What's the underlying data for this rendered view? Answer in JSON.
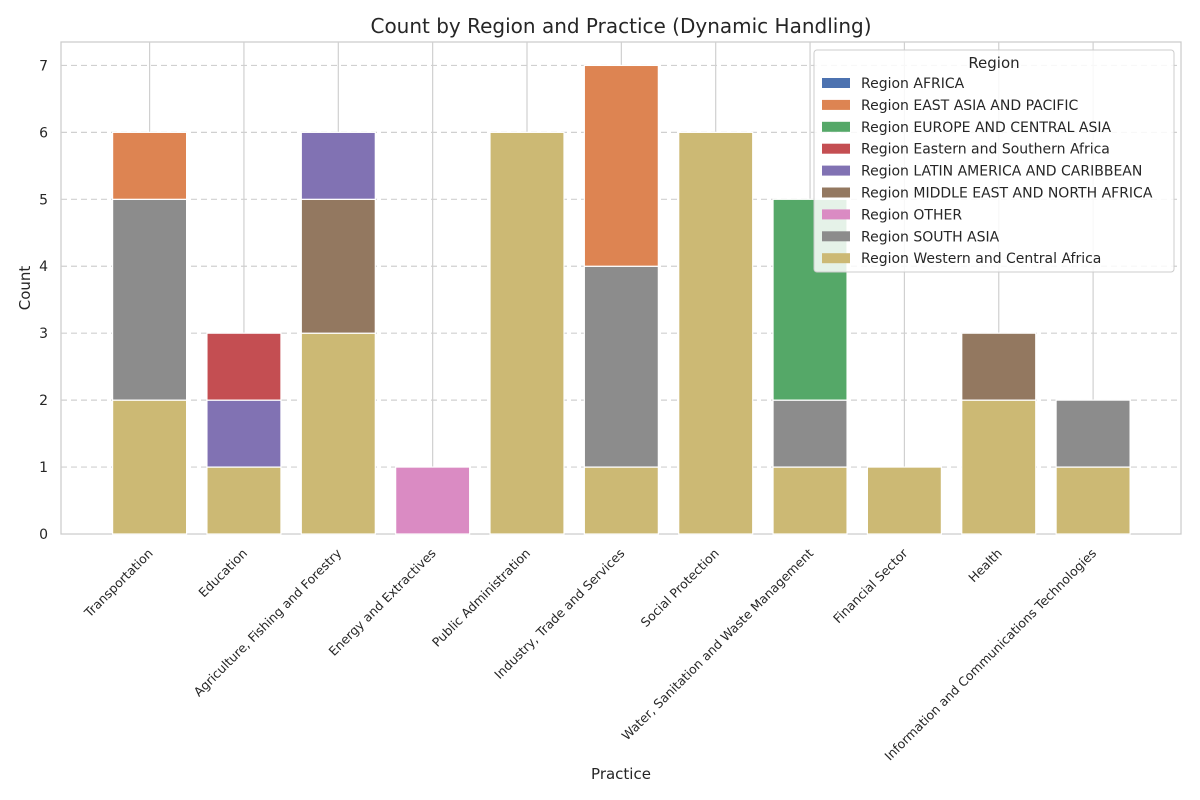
{
  "chart_data": {
    "type": "bar",
    "stacked": true,
    "title": "Count by Region and Practice (Dynamic Handling)",
    "xlabel": "Practice",
    "ylabel": "Count",
    "ylim": [
      0,
      7.35
    ],
    "yticks": [
      0,
      1,
      2,
      3,
      4,
      5,
      6,
      7
    ],
    "grid": true,
    "legend_title": "Region",
    "legend_position": "top-right",
    "categories": [
      "Transportation",
      "Education",
      "Agriculture, Fishing and Forestry",
      "Energy and Extractives",
      "Public Administration",
      "Industry, Trade and Services",
      "Social Protection",
      "Water, Sanitation and Waste Management",
      "Financial Sector",
      "Health",
      "Information and Communications Technologies"
    ],
    "series": [
      {
        "name": "Region AFRICA",
        "color": "#4c72b0",
        "values": [
          0,
          0,
          0,
          0,
          0,
          0,
          0,
          0,
          0,
          0,
          0
        ]
      },
      {
        "name": "Region EAST ASIA AND PACIFIC",
        "color": "#dd8452",
        "values": [
          1,
          0,
          0,
          0,
          0,
          3,
          0,
          0,
          0,
          0,
          0
        ]
      },
      {
        "name": "Region EUROPE AND CENTRAL ASIA",
        "color": "#55a868",
        "values": [
          0,
          0,
          0,
          0,
          0,
          0,
          0,
          3,
          0,
          0,
          0
        ]
      },
      {
        "name": "Region Eastern and Southern Africa",
        "color": "#c44e52",
        "values": [
          0,
          1,
          0,
          0,
          0,
          0,
          0,
          0,
          0,
          0,
          0
        ]
      },
      {
        "name": "Region LATIN AMERICA AND CARIBBEAN",
        "color": "#8172b3",
        "values": [
          0,
          1,
          1,
          0,
          0,
          0,
          0,
          0,
          0,
          0,
          0
        ]
      },
      {
        "name": "Region MIDDLE EAST AND NORTH AFRICA",
        "color": "#937860",
        "values": [
          0,
          0,
          2,
          0,
          0,
          0,
          0,
          0,
          0,
          1,
          0
        ]
      },
      {
        "name": "Region OTHER",
        "color": "#da8bc3",
        "values": [
          0,
          0,
          0,
          1,
          0,
          0,
          0,
          0,
          0,
          0,
          0
        ]
      },
      {
        "name": "Region SOUTH ASIA",
        "color": "#8c8c8c",
        "values": [
          3,
          0,
          0,
          0,
          0,
          3,
          0,
          1,
          0,
          0,
          1
        ]
      },
      {
        "name": "Region Western and Central Africa",
        "color": "#ccb974",
        "values": [
          2,
          1,
          3,
          0,
          6,
          1,
          6,
          1,
          1,
          2,
          1
        ]
      }
    ],
    "stack_order": [
      8,
      7,
      6,
      5,
      4,
      3,
      2,
      1,
      0
    ]
  }
}
